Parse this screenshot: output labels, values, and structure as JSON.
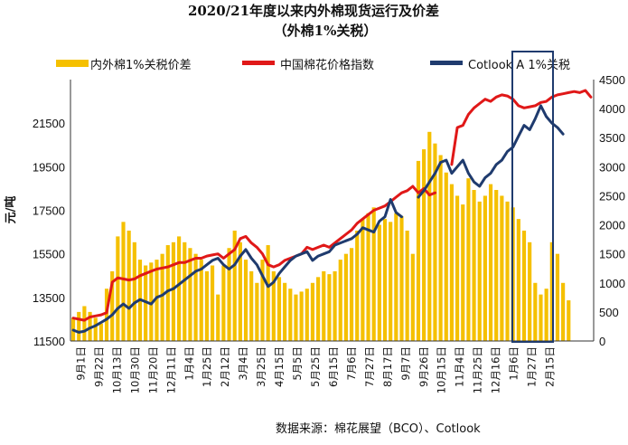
{
  "chart_data": {
    "type": "bar+line",
    "title": "2020/21年度以来内外棉现货运行及价差",
    "subtitle": "（外棉1%关税）",
    "ylabel": "元/吨",
    "source": "数据来源：棉花展望（BCO）、Cotlook",
    "left_axis": {
      "min": 11500,
      "max": 23500,
      "ticks": [
        "11500",
        "13500",
        "15500",
        "17500",
        "19500",
        "21500"
      ]
    },
    "right_axis": {
      "min": 0,
      "max": 4500,
      "ticks": [
        "0",
        "500",
        "1000",
        "1500",
        "2000",
        "2500",
        "3000",
        "3500",
        "4000",
        "4500"
      ]
    },
    "x_labels": [
      "9月1日",
      "9月22日",
      "10月13日",
      "10月30日",
      "11月20日",
      "12月11日",
      "1月4日",
      "1月25日",
      "2月12日",
      "3月4日",
      "3月25日",
      "4月15日",
      "5月5日",
      "5月25日",
      "6月15日",
      "7月6日",
      "7月27日",
      "8月17日",
      "9月7日",
      "9月26日",
      "10月15日",
      "11月4日",
      "11月25日",
      "12月16日",
      "1月6日",
      "1月27日",
      "2月15日"
    ],
    "legend": {
      "position": "top",
      "entries": [
        {
          "label": "内外棉1%关税价差",
          "color": "#f5c000",
          "kind": "bar"
        },
        {
          "label": "中国棉花价格指数",
          "color": "#e01818",
          "kind": "line"
        },
        {
          "label": "Cotlook A 1%关税",
          "color": "#1f3b6e",
          "kind": "line"
        }
      ]
    },
    "series": [
      {
        "name": "中国棉花价格指数",
        "axis": "left",
        "color": "#e01818",
        "values": [
          12550,
          12500,
          12450,
          12600,
          12650,
          12700,
          12800,
          14200,
          14400,
          14350,
          14300,
          14350,
          14500,
          14600,
          14700,
          14800,
          14850,
          14900,
          15000,
          15100,
          15100,
          15200,
          15300,
          15300,
          15400,
          15450,
          15500,
          15300,
          15500,
          15700,
          16200,
          16300,
          16000,
          15800,
          15500,
          15000,
          14900,
          15000,
          15200,
          15300,
          15400,
          15500,
          15800,
          15700,
          15800,
          15900,
          15800,
          16000,
          16200,
          16400,
          16600,
          16900,
          17100,
          17300,
          17500,
          17600,
          17700,
          17900,
          18100,
          18300,
          18400,
          18600,
          18300,
          18500,
          18200,
          18300,
          null,
          null,
          19600,
          21300,
          21400,
          21900,
          22200,
          22400,
          22600,
          22500,
          22700,
          22800,
          22750,
          22600,
          22300,
          22200,
          22250,
          22300,
          22450,
          22500,
          22700,
          22800,
          22850,
          22900,
          22950,
          22900,
          23000,
          22700
        ]
      },
      {
        "name": "Cotlook A 1%关税",
        "axis": "left",
        "color": "#1f3b6e",
        "values": [
          12000,
          11900,
          11950,
          12100,
          12200,
          12350,
          12500,
          12700,
          13000,
          13200,
          13000,
          13250,
          13400,
          13300,
          13200,
          13500,
          13600,
          13800,
          13900,
          14100,
          14300,
          14500,
          14700,
          14800,
          15000,
          15200,
          15300,
          15000,
          14800,
          15000,
          15400,
          15700,
          15300,
          15000,
          14500,
          14000,
          14200,
          14600,
          14900,
          15200,
          15400,
          15500,
          15600,
          15200,
          15400,
          15500,
          15600,
          15900,
          16000,
          16100,
          16200,
          16400,
          16700,
          16600,
          16500,
          17000,
          17200,
          18000,
          17400,
          17200,
          null,
          null,
          18100,
          18400,
          18800,
          19200,
          19700,
          19800,
          19200,
          19500,
          19800,
          19200,
          18800,
          18600,
          19000,
          19200,
          19600,
          19800,
          20200,
          20400,
          20900,
          21400,
          21200,
          21700,
          22300,
          21800,
          21500,
          21300,
          21000,
          null,
          null,
          null,
          null,
          null
        ]
      },
      {
        "name": "内外棉1%关税价差",
        "axis": "right",
        "color": "#f5c000",
        "kind": "bar",
        "values": [
          400,
          500,
          600,
          500,
          400,
          300,
          900,
          1200,
          1800,
          2050,
          1900,
          1700,
          1400,
          1300,
          1350,
          1400,
          1500,
          1650,
          1700,
          1800,
          1700,
          1600,
          1500,
          1400,
          1200,
          1300,
          800,
          1300,
          1600,
          1900,
          1700,
          1400,
          1200,
          1000,
          1400,
          1650,
          1200,
          1100,
          1000,
          900,
          800,
          850,
          900,
          1000,
          1100,
          1200,
          1150,
          1200,
          1400,
          1500,
          1600,
          1900,
          2100,
          2200,
          2300,
          2000,
          2100,
          2050,
          2200,
          2150,
          1900,
          1500,
          3100,
          3300,
          3600,
          3400,
          3200,
          2900,
          2700,
          2500,
          2350,
          2800,
          2600,
          2400,
          2500,
          2700,
          2600,
          2500,
          2400,
          2300,
          2100,
          1900,
          1700,
          1000,
          800,
          900,
          1700,
          1500,
          1000,
          700,
          null,
          null,
          null,
          null
        ]
      }
    ],
    "annotation": "box around the last three x-labels (latest period)"
  }
}
